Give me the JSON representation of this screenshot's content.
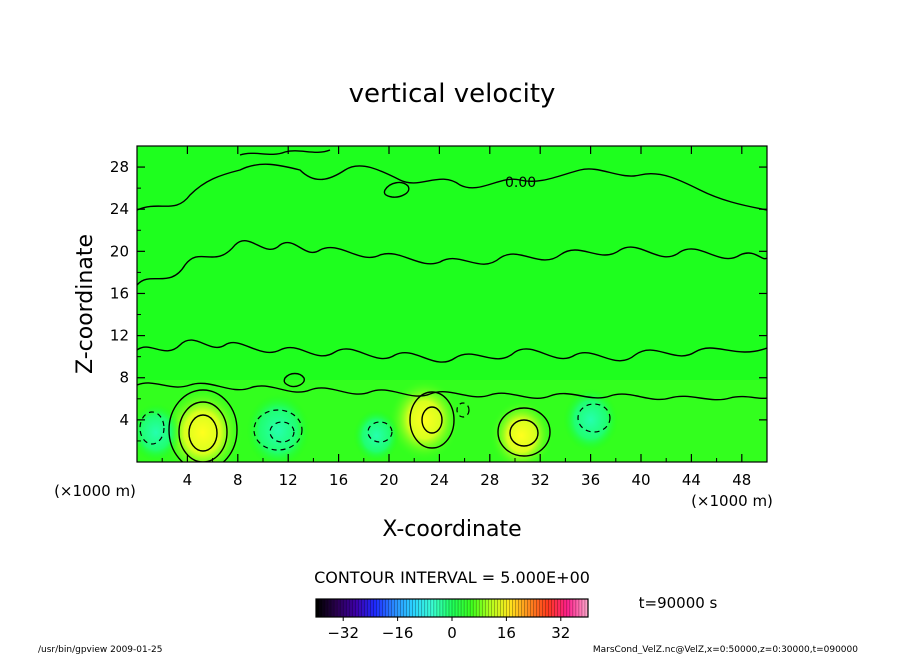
{
  "chart_data": {
    "type": "contour",
    "title": "vertical velocity",
    "xlabel": "X-coordinate",
    "ylabel": "Z-coordinate",
    "x_unit": "(×1000 m)",
    "y_unit": "(×1000 m)",
    "xlim": [
      0,
      50
    ],
    "ylim": [
      0,
      30
    ],
    "x_ticks": [
      4,
      8,
      12,
      16,
      20,
      24,
      28,
      32,
      36,
      40,
      44,
      48
    ],
    "y_ticks": [
      4,
      8,
      12,
      16,
      20,
      24,
      28
    ],
    "contour_interval_text": "CONTOUR INTERVAL = 5.000E+00",
    "contour_label": "0.00",
    "time_text": "t=90000 s",
    "colorbar": {
      "min": -40,
      "max": 40,
      "ticks": [
        -32,
        -16,
        0,
        16,
        32
      ],
      "colors": [
        "#000000",
        "#2a0050",
        "#3d00a8",
        "#1e2bff",
        "#2a8cff",
        "#2bd4ff",
        "#3affd2",
        "#1eff5a",
        "#3cff1e",
        "#b4ff1e",
        "#ffe61e",
        "#ff8c1e",
        "#ff3a1e",
        "#ff1e8c",
        "#ffa0c8"
      ]
    },
    "features": [
      {
        "x": 5.2,
        "z": 2.8,
        "value": 12,
        "sign": "positive"
      },
      {
        "x": 22.8,
        "z": 4.0,
        "value": 10,
        "sign": "positive"
      },
      {
        "x": 30.5,
        "z": 2.5,
        "value": 8,
        "sign": "positive"
      },
      {
        "x": 1.5,
        "z": 2.8,
        "value": -5,
        "sign": "negative"
      },
      {
        "x": 11.2,
        "z": 3.0,
        "value": -8,
        "sign": "negative"
      },
      {
        "x": 19.0,
        "z": 2.5,
        "value": -4,
        "sign": "negative"
      },
      {
        "x": 36.0,
        "z": 4.0,
        "value": -6,
        "sign": "negative"
      }
    ]
  },
  "footer": {
    "left": "/usr/bin/gpview  2009-01-25",
    "right": "MarsCond_VelZ.nc@VelZ,x=0:50000,z=0:30000,t=090000"
  }
}
